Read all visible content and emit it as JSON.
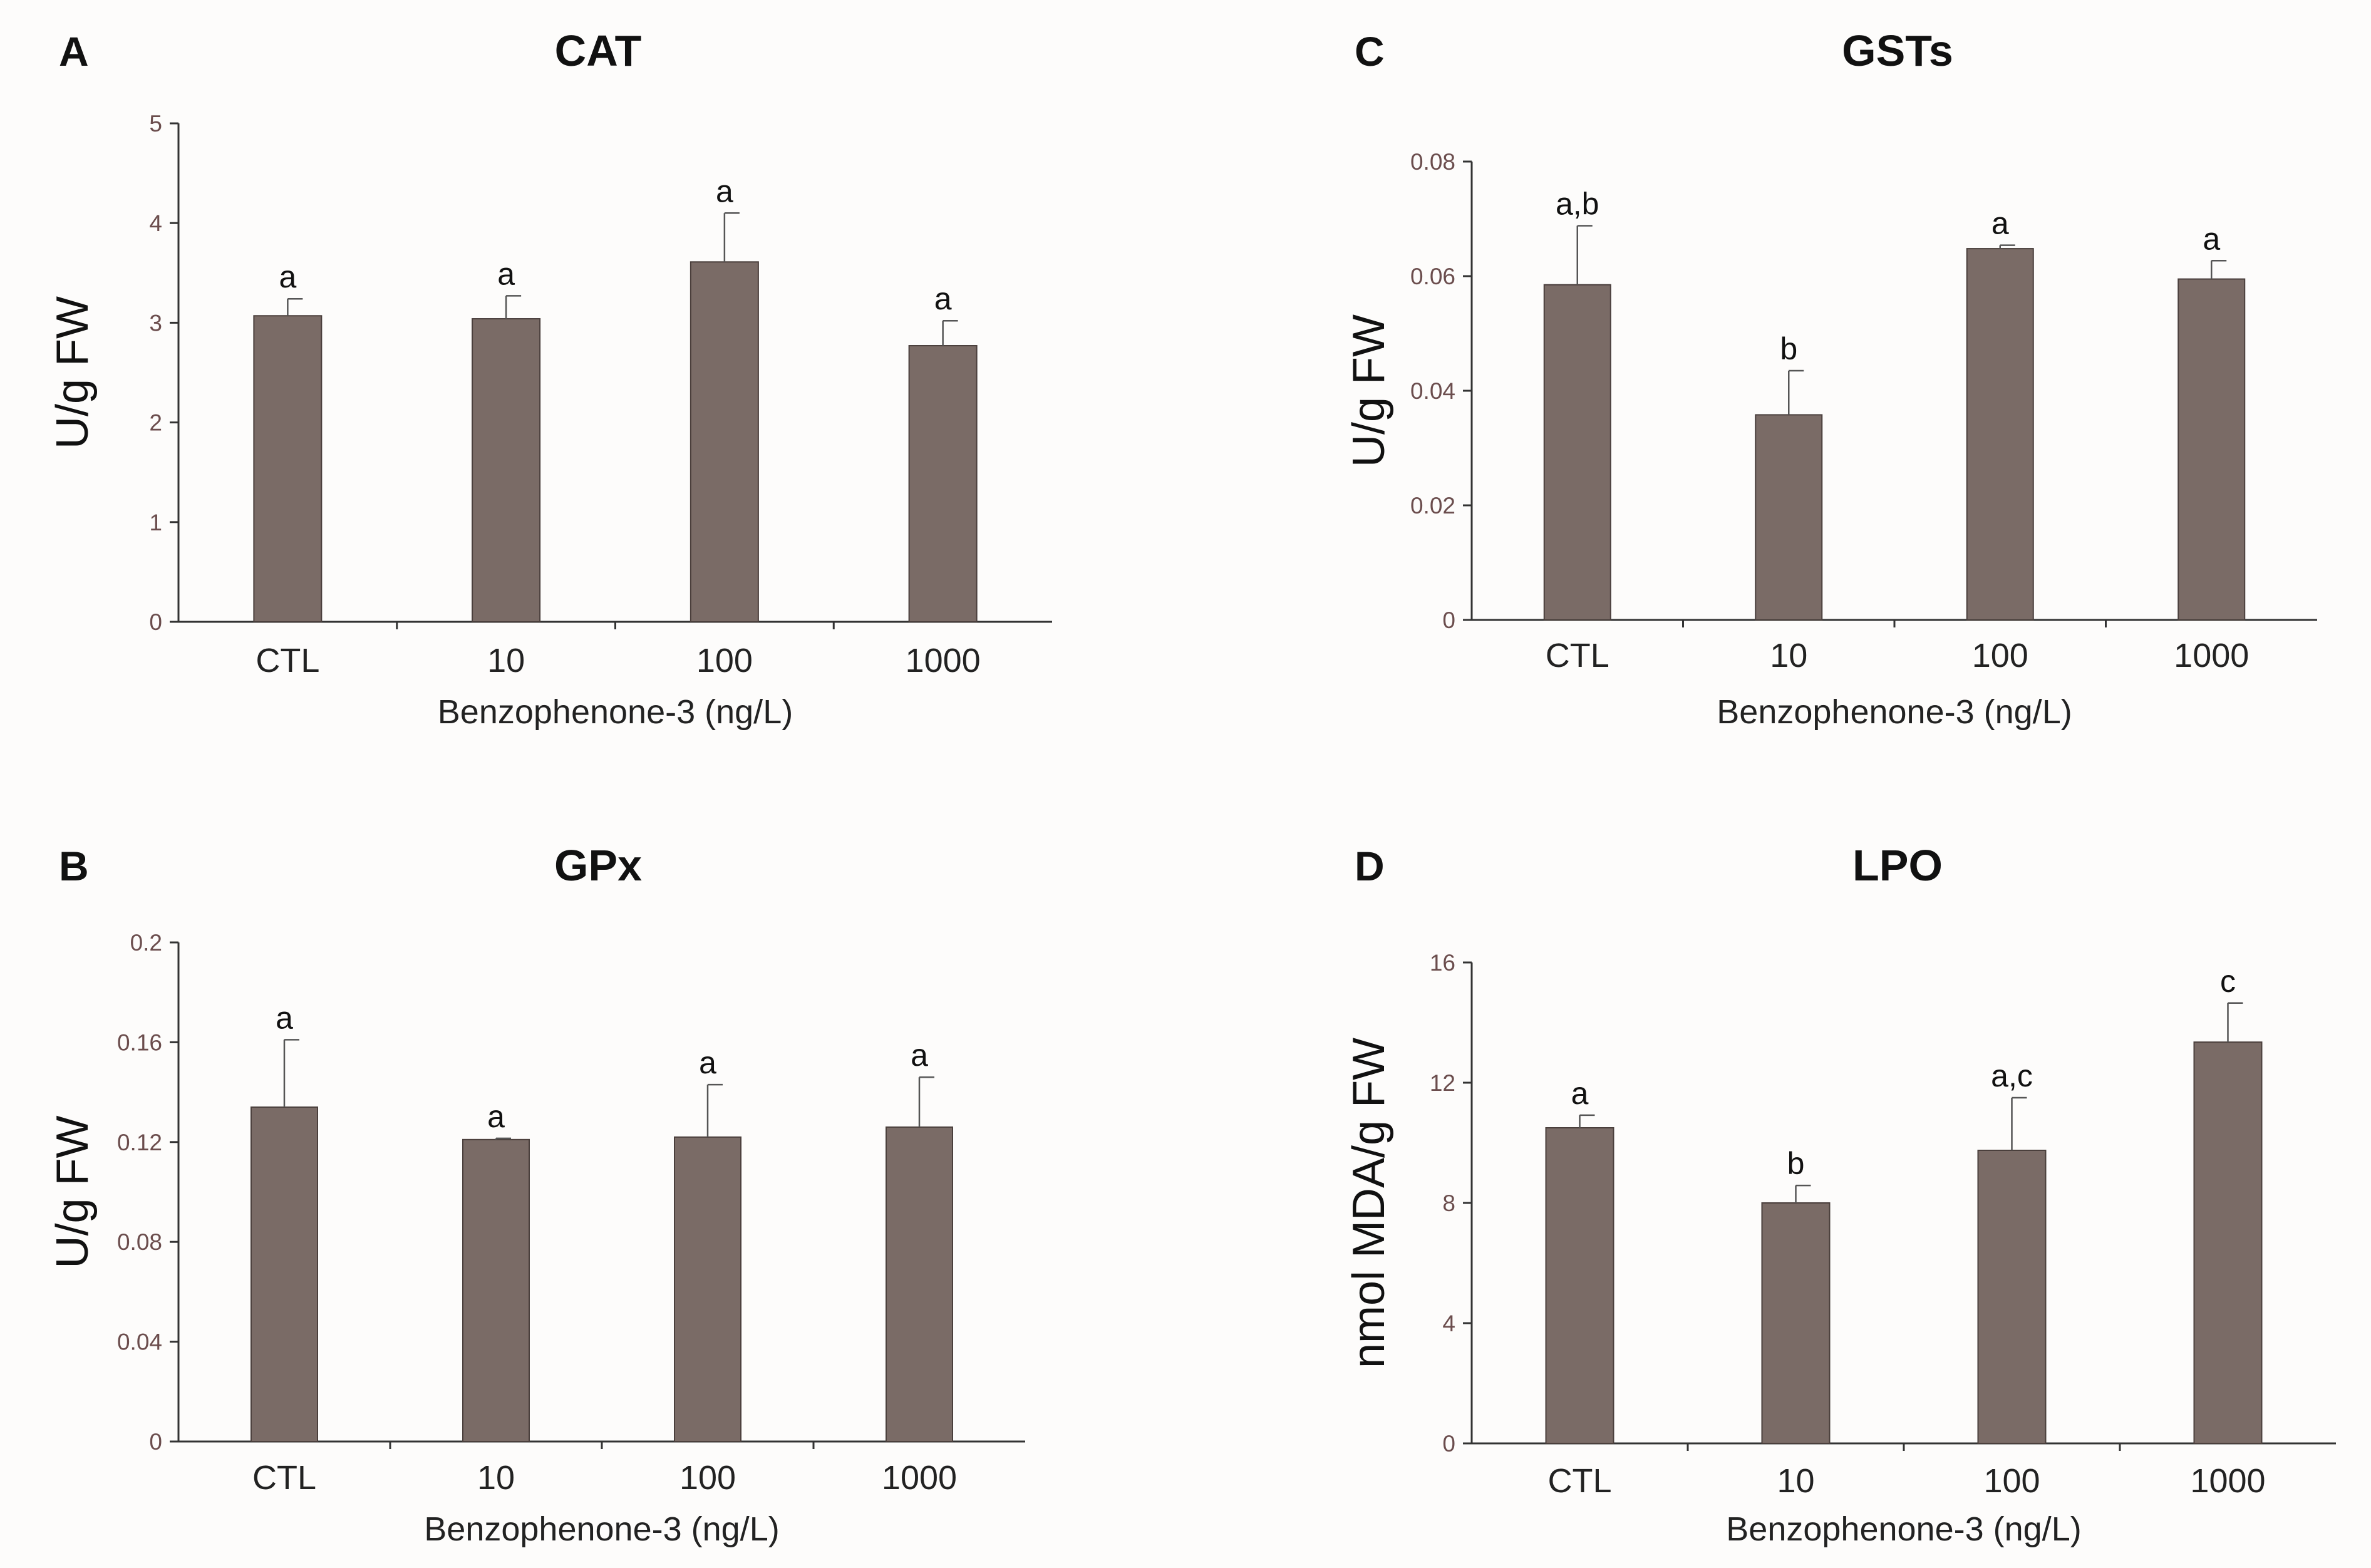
{
  "chart_data": [
    {
      "panel": "A",
      "type": "bar",
      "title": "CAT",
      "ylabel": "U/g FW",
      "xlabel": "Benzophenone-3 (ng/L)",
      "categories": [
        "CTL",
        "10",
        "100",
        "1000"
      ],
      "values": [
        3.07,
        3.04,
        3.61,
        2.77
      ],
      "errors": [
        0.17,
        0.23,
        0.49,
        0.25
      ],
      "significance": [
        "a",
        "a",
        "a",
        "a"
      ],
      "ylim": [
        0,
        5
      ],
      "yticks": [
        "0",
        "1",
        "2",
        "3",
        "4",
        "5"
      ]
    },
    {
      "panel": "C",
      "type": "bar",
      "title": "GSTs",
      "ylabel": "U/g FW",
      "xlabel": "Benzophenone-3 (ng/L)",
      "categories": [
        "CTL",
        "10",
        "100",
        "1000"
      ],
      "values": [
        0.0585,
        0.0358,
        0.0648,
        0.0595
      ],
      "errors": [
        0.0103,
        0.0077,
        0.0006,
        0.0032
      ],
      "significance": [
        "a,b",
        "b",
        "a",
        "a"
      ],
      "ylim": [
        0,
        0.08
      ],
      "yticks": [
        "0",
        "0.02",
        "0.04",
        "0.06",
        "0.08"
      ]
    },
    {
      "panel": "B",
      "type": "bar",
      "title": "GPx",
      "ylabel": "U/g FW",
      "xlabel": "Benzophenone-3 (ng/L)",
      "categories": [
        "CTL",
        "10",
        "100",
        "1000"
      ],
      "values": [
        0.134,
        0.121,
        0.122,
        0.126
      ],
      "errors": [
        0.027,
        0.0005,
        0.021,
        0.02
      ],
      "significance": [
        "a",
        "a",
        "a",
        "a"
      ],
      "ylim": [
        0,
        0.2
      ],
      "yticks": [
        "0",
        "0.04",
        "0.08",
        "0.12",
        "0.16",
        "0.2"
      ]
    },
    {
      "panel": "D",
      "type": "bar",
      "title": "LPO",
      "ylabel": "nmol MDA/g FW",
      "xlabel": "Benzophenone-3 (ng/L)",
      "categories": [
        "CTL",
        "10",
        "100",
        "1000"
      ],
      "values": [
        10.5,
        8.0,
        9.75,
        13.35
      ],
      "errors": [
        0.42,
        0.58,
        1.75,
        1.3
      ],
      "significance": [
        "a",
        "b",
        "a,c",
        "c"
      ],
      "ylim": [
        0,
        16
      ],
      "yticks": [
        "0",
        "4",
        "8",
        "12",
        "16"
      ]
    }
  ],
  "colors": {
    "bar": "#7a6b66",
    "bar_edge": "#4a3f3c",
    "axis": "#333333",
    "tick_text": "#6b4d4d",
    "background": "#fdfcfb"
  }
}
